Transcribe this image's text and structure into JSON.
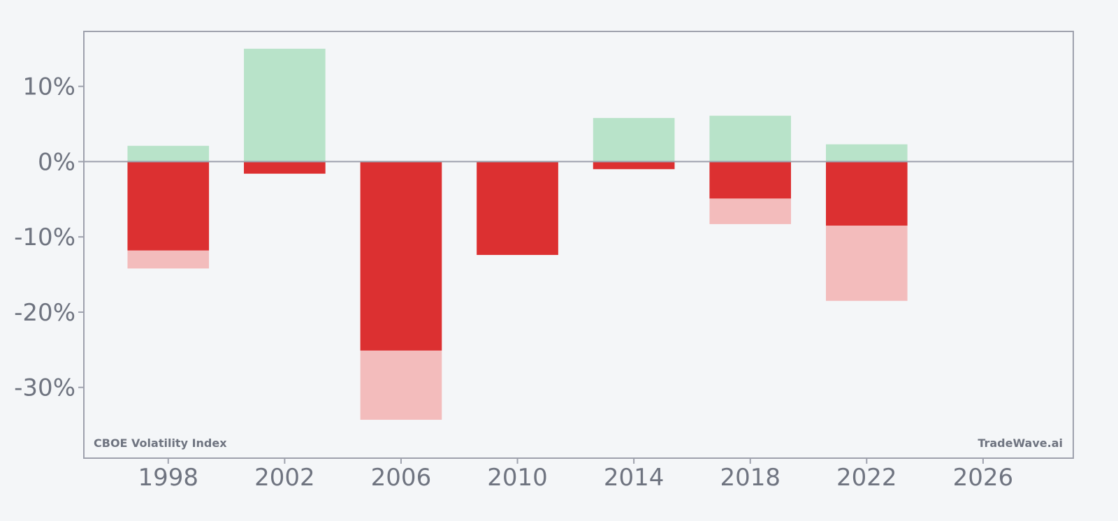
{
  "chart_data": {
    "type": "bar",
    "stacked_overlay": true,
    "x": [
      1998,
      2002,
      2006,
      2010,
      2014,
      2018,
      2022
    ],
    "series": [
      {
        "role": "gain",
        "color": "#b8e3c9",
        "values": [
          2.1,
          15.0,
          0,
          0,
          5.8,
          6.1,
          2.3
        ]
      },
      {
        "role": "loss",
        "color": "#dc3031",
        "values": [
          -11.8,
          -1.6,
          -25.1,
          -12.4,
          -1.0,
          -4.9,
          -8.5
        ]
      },
      {
        "role": "extended-loss",
        "color": "#f3bcbc",
        "values": [
          -14.2,
          -1.6,
          -34.3,
          -12.4,
          -1.0,
          -8.3,
          -18.5
        ]
      }
    ],
    "xlim": [
      1995.1,
      2029.1
    ],
    "ylim": [
      -39.4,
      17.3
    ],
    "bar_width_years": 2.8,
    "x_ticks": [
      "1998",
      "2002",
      "2006",
      "2010",
      "2014",
      "2018",
      "2022",
      "2026"
    ],
    "y_ticks": [
      {
        "value": 10,
        "label": "10%"
      },
      {
        "value": 0,
        "label": "0%"
      },
      {
        "value": -10,
        "label": "-10%"
      },
      {
        "value": -20,
        "label": "-20%"
      },
      {
        "value": -30,
        "label": "-30%"
      }
    ],
    "zero_line": true,
    "grid": false,
    "legend": "none"
  },
  "labels": {
    "index_name": "CBOE Volatility Index",
    "brand": "TradeWave.ai"
  },
  "colors": {
    "background": "#f4f6f8",
    "frame": "#9ea1ad",
    "text": "#6f7480"
  }
}
